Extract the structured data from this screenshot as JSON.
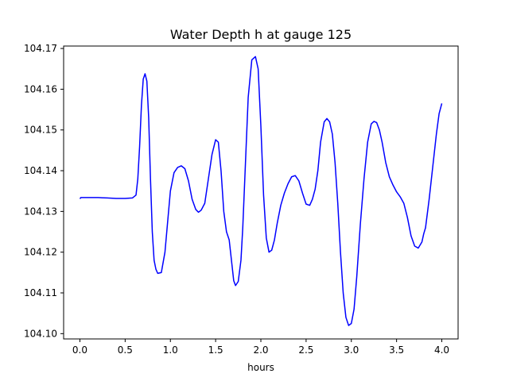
{
  "chart_data": {
    "type": "line",
    "title": "Water Depth h at gauge 125",
    "xlabel": "hours",
    "ylabel": "",
    "xlim": [
      -0.18,
      4.18
    ],
    "ylim": [
      104.0987,
      104.1706
    ],
    "x_ticks": [
      0.0,
      0.5,
      1.0,
      1.5,
      2.0,
      2.5,
      3.0,
      3.5,
      4.0
    ],
    "x_tick_labels": [
      "0.0",
      "0.5",
      "1.0",
      "1.5",
      "2.0",
      "2.5",
      "3.0",
      "3.5",
      "4.0"
    ],
    "y_ticks": [
      104.1,
      104.11,
      104.12,
      104.13,
      104.14,
      104.15,
      104.16,
      104.17
    ],
    "y_tick_labels": [
      "104.10",
      "104.11",
      "104.12",
      "104.13",
      "104.14",
      "104.15",
      "104.16",
      "104.17"
    ],
    "grid": false,
    "colors": {
      "line": "#0000ff",
      "axes": "#000000",
      "background": "#ffffff"
    },
    "series": [
      {
        "x": [
          0.0,
          0.01,
          0.1,
          0.2,
          0.3,
          0.4,
          0.5,
          0.58,
          0.62,
          0.64,
          0.66,
          0.68,
          0.7,
          0.72,
          0.74,
          0.76,
          0.78,
          0.8,
          0.82,
          0.84,
          0.86,
          0.9,
          0.94,
          0.98,
          1.0,
          1.04,
          1.08,
          1.12,
          1.16,
          1.2,
          1.24,
          1.28,
          1.31,
          1.34,
          1.38,
          1.42,
          1.46,
          1.5,
          1.53,
          1.56,
          1.59,
          1.62,
          1.65,
          1.68,
          1.7,
          1.72,
          1.75,
          1.78,
          1.8,
          1.83,
          1.86,
          1.9,
          1.94,
          1.97,
          2.0,
          2.03,
          2.06,
          2.09,
          2.12,
          2.15,
          2.18,
          2.22,
          2.26,
          2.3,
          2.34,
          2.38,
          2.42,
          2.46,
          2.5,
          2.54,
          2.57,
          2.6,
          2.63,
          2.66,
          2.7,
          2.73,
          2.76,
          2.79,
          2.82,
          2.85,
          2.88,
          2.91,
          2.94,
          2.97,
          3.0,
          3.03,
          3.06,
          3.1,
          3.14,
          3.18,
          3.22,
          3.25,
          3.28,
          3.31,
          3.34,
          3.38,
          3.42,
          3.46,
          3.5,
          3.54,
          3.58,
          3.62,
          3.66,
          3.7,
          3.74,
          3.78,
          3.8,
          3.82,
          3.86,
          3.9,
          3.94,
          3.97,
          4.0
        ],
        "y": [
          104.1331,
          104.1334,
          104.1334,
          104.1334,
          104.1333,
          104.1332,
          104.1332,
          104.1333,
          104.134,
          104.138,
          104.146,
          104.156,
          104.1625,
          104.1638,
          104.162,
          104.153,
          104.138,
          104.125,
          104.118,
          104.1158,
          104.1148,
          104.115,
          104.12,
          104.13,
          104.135,
          104.1395,
          104.1408,
          104.1412,
          104.1405,
          104.1375,
          104.133,
          104.1305,
          104.1298,
          104.1303,
          104.132,
          104.138,
          104.144,
          104.1476,
          104.147,
          104.14,
          104.13,
          104.125,
          104.123,
          104.117,
          104.113,
          104.1118,
          104.1128,
          104.118,
          104.126,
          104.142,
          104.158,
          104.1672,
          104.168,
          104.165,
          104.151,
          104.134,
          104.1235,
          104.12,
          104.1205,
          104.123,
          104.127,
          104.1315,
          104.1345,
          104.1368,
          104.1385,
          104.1388,
          104.1375,
          104.1345,
          104.1318,
          104.1315,
          104.133,
          104.1355,
          104.14,
          104.147,
          104.152,
          104.1528,
          104.152,
          104.149,
          104.142,
          104.132,
          104.12,
          104.11,
          104.104,
          104.102,
          104.1025,
          104.106,
          104.114,
          104.127,
          104.138,
          104.147,
          104.1515,
          104.1521,
          104.1518,
          104.15,
          104.147,
          104.142,
          104.1385,
          104.1365,
          104.1348,
          104.1336,
          104.132,
          104.1285,
          104.124,
          104.1215,
          104.121,
          104.1225,
          104.1245,
          104.126,
          104.133,
          104.141,
          104.149,
          104.154,
          104.1565
        ]
      }
    ]
  }
}
